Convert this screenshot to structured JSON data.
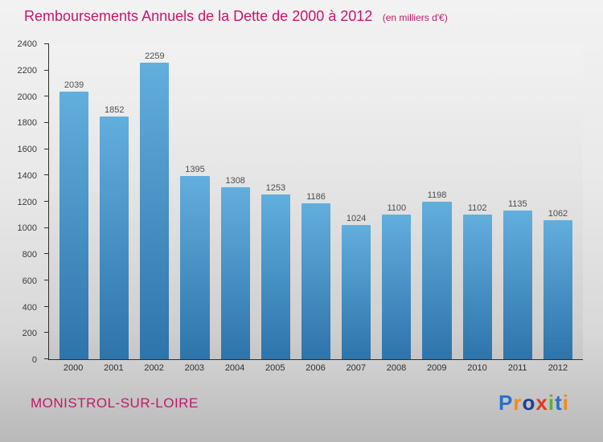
{
  "header": {
    "title": "Remboursements Annuels de la Dette de 2000 à 2012",
    "subtitle": "(en milliers d'€)",
    "title_color": "#c2186b"
  },
  "chart_data": {
    "type": "bar",
    "title": "Remboursements Annuels de la Dette de 2000 à 2012",
    "subtitle": "(en milliers d'€)",
    "categories": [
      "2000",
      "2001",
      "2002",
      "2003",
      "2004",
      "2005",
      "2006",
      "2007",
      "2008",
      "2009",
      "2010",
      "2011",
      "2012"
    ],
    "values": [
      2039,
      1852,
      2259,
      1395,
      1308,
      1253,
      1186,
      1024,
      1100,
      1198,
      1102,
      1135,
      1062
    ],
    "xlabel": "",
    "ylabel": "",
    "ylim": [
      0,
      2400
    ],
    "ytick_step": 200,
    "grid": false,
    "legend": "none",
    "bar_color_top": "#62aedd",
    "bar_color_bottom": "#2d74ab",
    "value_label_color": "#4d4d4d"
  },
  "footer": {
    "location": "MONISTROL-SUR-LOIRE",
    "location_color": "#c2186b",
    "logo_letters": [
      {
        "char": "P",
        "color": "#2a6fc9"
      },
      {
        "char": "r",
        "color": "#f08b1d"
      },
      {
        "char": "o",
        "color": "#1c3f94"
      },
      {
        "char": "x",
        "color": "#e0391f"
      },
      {
        "char": "i",
        "color": "#5fae35"
      },
      {
        "char": "t",
        "color": "#2a6fc9"
      },
      {
        "char": "i",
        "color": "#f08b1d"
      }
    ]
  }
}
